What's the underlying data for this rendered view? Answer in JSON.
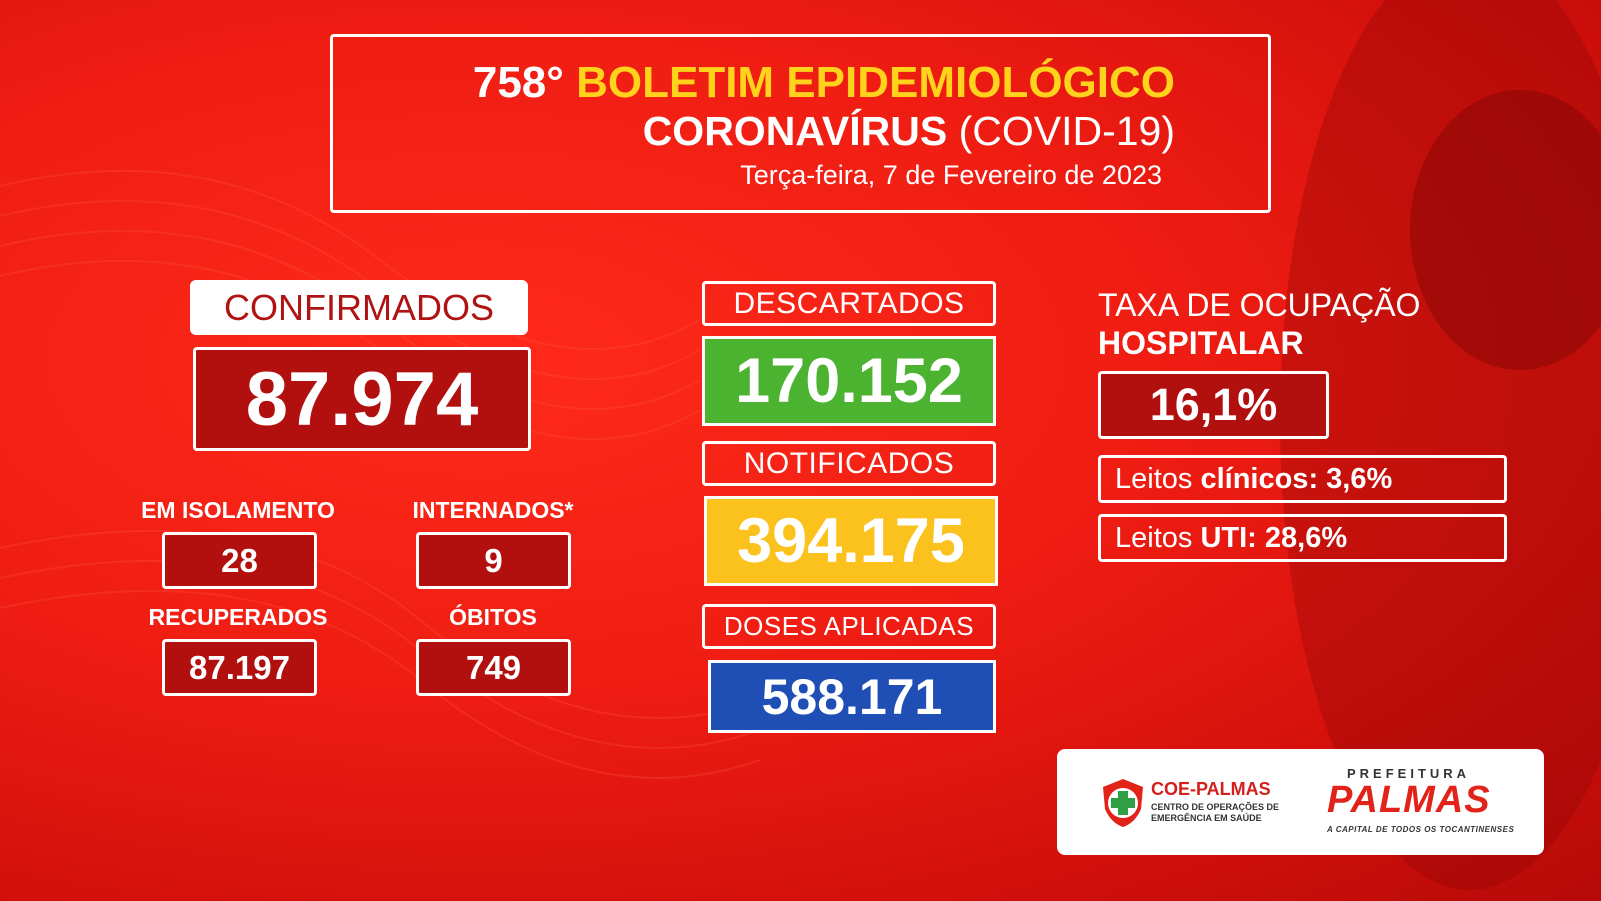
{
  "header": {
    "edition": "758°",
    "title": "BOLETIM EPIDEMIOLÓGICO",
    "subtitle_bold": "CORONAVÍRUS",
    "subtitle_light": "(COVID-19)",
    "date": "Terça-feira, 7 de Fevereiro de 2023"
  },
  "confirmados": {
    "label": "CONFIRMADOS",
    "value": "87.974"
  },
  "stats": {
    "isolamento": {
      "label": "EM ISOLAMENTO",
      "value": "28"
    },
    "internados": {
      "label": "INTERNADOS*",
      "value": "9"
    },
    "recuperados": {
      "label": "RECUPERADOS",
      "value": "87.197"
    },
    "obitos": {
      "label": "ÓBITOS",
      "value": "749"
    }
  },
  "descartados": {
    "label": "DESCARTADOS",
    "value": "170.152",
    "color": "#4bb330"
  },
  "notificados": {
    "label": "NOTIFICADOS",
    "value": "394.175",
    "color": "#fbc21e"
  },
  "doses": {
    "label": "DOSES APLICADAS",
    "value": "588.171",
    "color": "#1f4fb5"
  },
  "taxa": {
    "title_line1": "TAXA DE OCUPAÇÃO",
    "title_line2": "HOSPITALAR",
    "value": "16,1%",
    "leitos_clinicos_prefix": "Leitos ",
    "leitos_clinicos_label": "clínicos: 3,6%",
    "leitos_uti_prefix": "Leitos ",
    "leitos_uti_label": "UTI: 28,6%"
  },
  "logos": {
    "coe_name": "COE-PALMAS",
    "coe_line1": "CENTRO DE OPERAÇÕES DE",
    "coe_line2": "EMERGÊNCIA EM SAÚDE",
    "prefeitura": "PREFEITURA",
    "palmas": "PALMAS",
    "slogan": "A CAPITAL DE TODOS OS TOCANTINENSES"
  }
}
